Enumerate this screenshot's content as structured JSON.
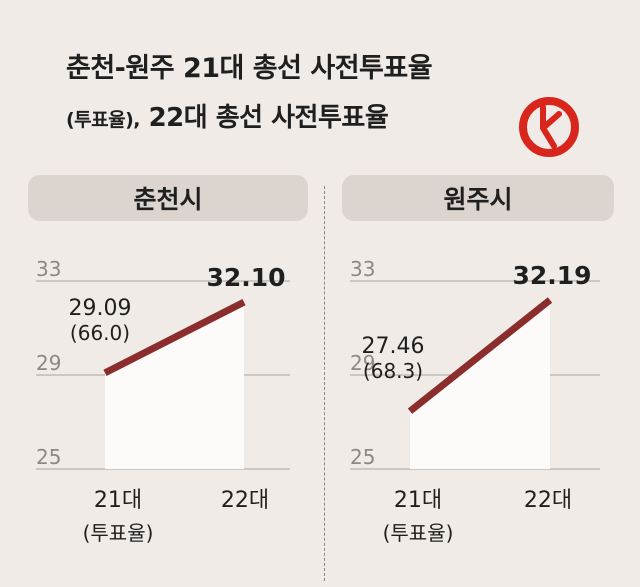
{
  "title_line1": "춘천-원주 21대 총선 사전투표율",
  "title_line2_small": "(투표율),",
  "title_line2_rest": "22대 총선 사전투표율",
  "logo_icon": "election-stamp-icon",
  "colors": {
    "line": "#8b2d2d",
    "logo": "#d9261c",
    "background": "#f0ebe6",
    "pill": "#dcd5cf"
  },
  "chart_data": [
    {
      "type": "line",
      "title": "춘천시",
      "categories": [
        "21대",
        "22대"
      ],
      "category_sublabels": [
        "(투표율)",
        ""
      ],
      "values": [
        29.09,
        32.1
      ],
      "value_labels": [
        "29.09",
        "32.10"
      ],
      "turnout_labels": [
        "(66.0)",
        ""
      ],
      "ylim": [
        25,
        33
      ],
      "yticks": [
        "33",
        "29",
        "25"
      ],
      "grid": true
    },
    {
      "type": "line",
      "title": "원주시",
      "categories": [
        "21대",
        "22대"
      ],
      "category_sublabels": [
        "(투표율)",
        ""
      ],
      "values": [
        27.46,
        32.19
      ],
      "value_labels": [
        "27.46",
        "32.19"
      ],
      "turnout_labels": [
        "(68.3)",
        ""
      ],
      "ylim": [
        25,
        33
      ],
      "yticks": [
        "33",
        "29",
        "25"
      ],
      "grid": true
    }
  ]
}
